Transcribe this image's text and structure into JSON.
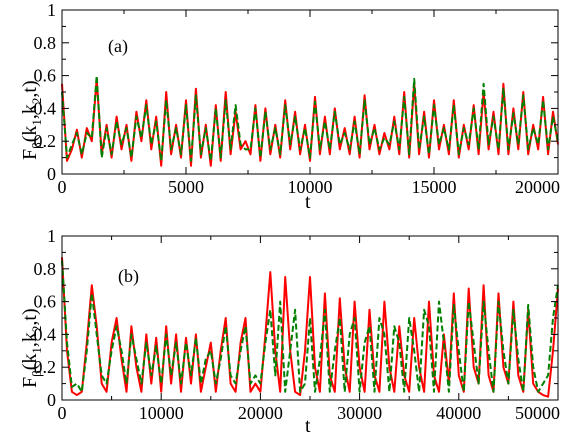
{
  "chart_data": [
    {
      "type": "line",
      "annotation": "(a)",
      "xlabel": "t",
      "ylabel": "F",
      "ylabel_sub_beta": "β",
      "ylabel_args_open": "(k",
      "ylabel_sub_1": "1",
      "ylabel_args_mid": ",k",
      "ylabel_sub_2": "2",
      "ylabel_args_close": ",t)",
      "xlim": [
        0,
        20000
      ],
      "ylim": [
        0,
        1
      ],
      "xticks": [
        0,
        5000,
        10000,
        15000,
        20000
      ],
      "xtick_labels": [
        "0",
        "5000",
        "10000",
        "15000",
        "20000"
      ],
      "yticks": [
        0,
        0.2,
        0.4,
        0.6,
        0.8,
        1
      ],
      "ytick_labels": [
        "0",
        "0.2",
        "0.4",
        "0.6",
        "0.8",
        "1"
      ],
      "grid": false,
      "series": [
        {
          "style": "solid",
          "color": "#ff0000",
          "x": [
            0,
            200,
            400,
            600,
            800,
            1000,
            1200,
            1400,
            1600,
            1800,
            2000,
            2200,
            2400,
            2600,
            2800,
            3000,
            3200,
            3400,
            3600,
            3800,
            4000,
            4200,
            4400,
            4600,
            4800,
            5000,
            5200,
            5400,
            5600,
            5800,
            6000,
            6200,
            6400,
            6600,
            6800,
            7000,
            7200,
            7400,
            7600,
            7800,
            8000,
            8200,
            8400,
            8600,
            8800,
            9000,
            9200,
            9400,
            9600,
            9800,
            10000,
            10200,
            10400,
            10600,
            10800,
            11000,
            11200,
            11400,
            11600,
            11800,
            12000,
            12200,
            12400,
            12600,
            12800,
            13000,
            13200,
            13400,
            13600,
            13800,
            14000,
            14200,
            14400,
            14600,
            14800,
            15000,
            15200,
            15400,
            15600,
            15800,
            16000,
            16200,
            16400,
            16600,
            16800,
            17000,
            17200,
            17400,
            17600,
            17800,
            18000,
            18200,
            18400,
            18600,
            18800,
            19000,
            19200,
            19400,
            19600,
            19800,
            20000
          ],
          "y": [
            0.55,
            0.08,
            0.15,
            0.27,
            0.1,
            0.28,
            0.2,
            0.58,
            0.12,
            0.3,
            0.1,
            0.35,
            0.15,
            0.3,
            0.08,
            0.38,
            0.2,
            0.45,
            0.15,
            0.35,
            0.05,
            0.5,
            0.12,
            0.3,
            0.1,
            0.45,
            0.05,
            0.52,
            0.1,
            0.3,
            0.05,
            0.42,
            0.08,
            0.5,
            0.12,
            0.38,
            0.15,
            0.2,
            0.12,
            0.42,
            0.08,
            0.4,
            0.12,
            0.3,
            0.1,
            0.45,
            0.15,
            0.38,
            0.12,
            0.3,
            0.08,
            0.47,
            0.12,
            0.35,
            0.12,
            0.4,
            0.15,
            0.28,
            0.12,
            0.35,
            0.1,
            0.48,
            0.15,
            0.3,
            0.12,
            0.25,
            0.15,
            0.35,
            0.12,
            0.5,
            0.1,
            0.55,
            0.12,
            0.38,
            0.1,
            0.45,
            0.15,
            0.3,
            0.12,
            0.45,
            0.1,
            0.3,
            0.15,
            0.42,
            0.12,
            0.5,
            0.15,
            0.38,
            0.12,
            0.55,
            0.12,
            0.4,
            0.15,
            0.5,
            0.12,
            0.3,
            0.15,
            0.47,
            0.12,
            0.38,
            0.18
          ]
        },
        {
          "style": "dashed",
          "color": "#008000",
          "x": [
            0,
            200,
            400,
            600,
            800,
            1000,
            1200,
            1400,
            1600,
            1800,
            2000,
            2200,
            2400,
            2600,
            2800,
            3000,
            3200,
            3400,
            3600,
            3800,
            4000,
            4200,
            4400,
            4600,
            4800,
            5000,
            5200,
            5400,
            5600,
            5800,
            6000,
            6200,
            6400,
            6600,
            6800,
            7000,
            7200,
            7400,
            7600,
            7800,
            8000,
            8200,
            8400,
            8600,
            8800,
            9000,
            9200,
            9400,
            9600,
            9800,
            10000,
            10200,
            10400,
            10600,
            10800,
            11000,
            11200,
            11400,
            11600,
            11800,
            12000,
            12200,
            12400,
            12600,
            12800,
            13000,
            13200,
            13400,
            13600,
            13800,
            14000,
            14200,
            14400,
            14600,
            14800,
            15000,
            15200,
            15400,
            15600,
            15800,
            16000,
            16200,
            16400,
            16600,
            16800,
            17000,
            17200,
            17400,
            17600,
            17800,
            18000,
            18200,
            18400,
            18600,
            18800,
            19000,
            19200,
            19400,
            19600,
            19800,
            20000
          ],
          "y": [
            0.5,
            0.1,
            0.18,
            0.25,
            0.12,
            0.25,
            0.22,
            0.6,
            0.1,
            0.28,
            0.12,
            0.32,
            0.18,
            0.28,
            0.1,
            0.35,
            0.22,
            0.42,
            0.18,
            0.32,
            0.08,
            0.45,
            0.15,
            0.28,
            0.12,
            0.42,
            0.08,
            0.48,
            0.12,
            0.28,
            0.08,
            0.4,
            0.1,
            0.45,
            0.15,
            0.42,
            0.18,
            0.15,
            0.15,
            0.4,
            0.1,
            0.38,
            0.15,
            0.28,
            0.12,
            0.42,
            0.18,
            0.35,
            0.15,
            0.28,
            0.1,
            0.44,
            0.15,
            0.32,
            0.15,
            0.38,
            0.18,
            0.25,
            0.15,
            0.32,
            0.12,
            0.45,
            0.18,
            0.28,
            0.15,
            0.22,
            0.18,
            0.32,
            0.15,
            0.47,
            0.12,
            0.58,
            0.15,
            0.35,
            0.12,
            0.42,
            0.18,
            0.28,
            0.15,
            0.42,
            0.12,
            0.28,
            0.18,
            0.4,
            0.15,
            0.55,
            0.18,
            0.35,
            0.15,
            0.52,
            0.15,
            0.37,
            0.18,
            0.48,
            0.15,
            0.28,
            0.18,
            0.45,
            0.15,
            0.35,
            0.2
          ]
        }
      ]
    },
    {
      "type": "line",
      "annotation": "(b)",
      "xlabel": "t",
      "ylabel": "F",
      "ylabel_sub_beta": "β",
      "ylabel_args_open": "(k",
      "ylabel_sub_1": "1",
      "ylabel_args_mid": ",k",
      "ylabel_sub_2": "2",
      "ylabel_args_close": ",t)",
      "xlim": [
        0,
        50000
      ],
      "ylim": [
        0,
        1
      ],
      "xticks": [
        0,
        10000,
        20000,
        30000,
        40000,
        50000
      ],
      "xtick_labels": [
        "0",
        "10000",
        "20000",
        "30000",
        "40000",
        "50000"
      ],
      "yticks": [
        0,
        0.2,
        0.4,
        0.6,
        0.8,
        1
      ],
      "ytick_labels": [
        "0",
        "0.2",
        "0.4",
        "0.6",
        "0.8",
        "1"
      ],
      "grid": false,
      "series": [
        {
          "style": "solid",
          "color": "#ff0000",
          "x": [
            0,
            500,
            1000,
            1500,
            2000,
            2500,
            3000,
            3500,
            4000,
            4500,
            5000,
            5500,
            6000,
            6500,
            7000,
            7500,
            8000,
            8500,
            9000,
            9500,
            10000,
            10500,
            11000,
            11500,
            12000,
            12500,
            13000,
            13500,
            14000,
            14500,
            15000,
            15500,
            16000,
            16500,
            17000,
            17500,
            18000,
            18500,
            19000,
            19500,
            20000,
            20500,
            21000,
            21500,
            22000,
            22500,
            23000,
            23500,
            24000,
            24500,
            25000,
            25500,
            26000,
            26500,
            27000,
            27500,
            28000,
            28500,
            29000,
            29500,
            30000,
            30500,
            31000,
            31500,
            32000,
            32500,
            33000,
            33500,
            34000,
            34500,
            35000,
            35500,
            36000,
            36500,
            37000,
            37500,
            38000,
            38500,
            39000,
            39500,
            40000,
            40500,
            41000,
            41500,
            42000,
            42500,
            43000,
            43500,
            44000,
            44500,
            45000,
            45500,
            46000,
            46500,
            47000,
            47500,
            48000,
            48500,
            49000,
            49500,
            50000
          ],
          "y": [
            0.87,
            0.3,
            0.05,
            0.03,
            0.05,
            0.35,
            0.7,
            0.45,
            0.1,
            0.05,
            0.35,
            0.5,
            0.25,
            0.05,
            0.45,
            0.2,
            0.05,
            0.4,
            0.1,
            0.38,
            0.05,
            0.45,
            0.1,
            0.4,
            0.05,
            0.38,
            0.1,
            0.4,
            0.05,
            0.2,
            0.35,
            0.05,
            0.3,
            0.5,
            0.1,
            0.05,
            0.35,
            0.5,
            0.05,
            0.1,
            0.05,
            0.4,
            0.78,
            0.3,
            0.05,
            0.75,
            0.3,
            0.05,
            0.03,
            0.3,
            0.75,
            0.2,
            0.05,
            0.65,
            0.15,
            0.05,
            0.62,
            0.2,
            0.05,
            0.6,
            0.2,
            0.05,
            0.55,
            0.15,
            0.05,
            0.6,
            0.2,
            0.05,
            0.45,
            0.15,
            0.05,
            0.5,
            0.2,
            0.05,
            0.6,
            0.15,
            0.05,
            0.4,
            0.1,
            0.65,
            0.15,
            0.05,
            0.68,
            0.2,
            0.1,
            0.7,
            0.15,
            0.05,
            0.65,
            0.2,
            0.1,
            0.6,
            0.15,
            0.05,
            0.55,
            0.1,
            0.05,
            0.03,
            0.02,
            0.3,
            0.68
          ]
        },
        {
          "style": "dashed",
          "color": "#008000",
          "x": [
            0,
            500,
            1000,
            1500,
            2000,
            2500,
            3000,
            3500,
            4000,
            4500,
            5000,
            5500,
            6000,
            6500,
            7000,
            7500,
            8000,
            8500,
            9000,
            9500,
            10000,
            10500,
            11000,
            11500,
            12000,
            12500,
            13000,
            13500,
            14000,
            14500,
            15000,
            15500,
            16000,
            16500,
            17000,
            17500,
            18000,
            18500,
            19000,
            19500,
            20000,
            20500,
            21000,
            21500,
            22000,
            22500,
            23000,
            23500,
            24000,
            24500,
            25000,
            25500,
            26000,
            26500,
            27000,
            27500,
            28000,
            28500,
            29000,
            29500,
            30000,
            30500,
            31000,
            31500,
            32000,
            32500,
            33000,
            33500,
            34000,
            34500,
            35000,
            35500,
            36000,
            36500,
            37000,
            37500,
            38000,
            38500,
            39000,
            39500,
            40000,
            40500,
            41000,
            41500,
            42000,
            42500,
            43000,
            43500,
            44000,
            44500,
            45000,
            45500,
            46000,
            46500,
            47000,
            47500,
            48000,
            48500,
            49000,
            49500,
            50000
          ],
          "y": [
            0.85,
            0.35,
            0.08,
            0.1,
            0.05,
            0.3,
            0.65,
            0.4,
            0.15,
            0.1,
            0.3,
            0.45,
            0.3,
            0.1,
            0.4,
            0.25,
            0.1,
            0.35,
            0.15,
            0.33,
            0.1,
            0.4,
            0.15,
            0.35,
            0.1,
            0.35,
            0.15,
            0.38,
            0.1,
            0.25,
            0.3,
            0.1,
            0.25,
            0.45,
            0.15,
            0.1,
            0.3,
            0.45,
            0.1,
            0.15,
            0.1,
            0.35,
            0.55,
            0.15,
            0.6,
            0.05,
            0.3,
            0.55,
            0.05,
            0.1,
            0.5,
            0.05,
            0.25,
            0.55,
            0.05,
            0.3,
            0.5,
            0.05,
            0.4,
            0.5,
            0.05,
            0.35,
            0.45,
            0.05,
            0.5,
            0.4,
            0.05,
            0.45,
            0.35,
            0.05,
            0.5,
            0.3,
            0.05,
            0.55,
            0.45,
            0.05,
            0.6,
            0.35,
            0.05,
            0.58,
            0.3,
            0.05,
            0.6,
            0.35,
            0.1,
            0.6,
            0.3,
            0.05,
            0.6,
            0.3,
            0.1,
            0.55,
            0.25,
            0.05,
            0.58,
            0.2,
            0.05,
            0.1,
            0.15,
            0.5,
            0.7
          ]
        }
      ]
    }
  ]
}
